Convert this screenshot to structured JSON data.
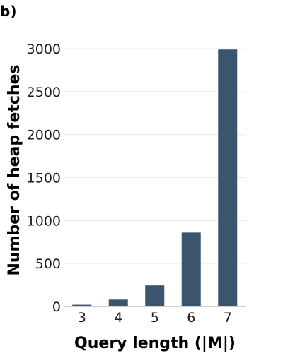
{
  "panel_label": "b)",
  "chart_data": {
    "type": "bar",
    "categories": [
      "3",
      "4",
      "5",
      "6",
      "7"
    ],
    "values": [
      20,
      80,
      245,
      860,
      2990
    ],
    "title": "",
    "xlabel": "Query length (|M|)",
    "ylabel": "Number of heap fetches",
    "ylim": [
      0,
      3000
    ],
    "yticks": [
      0,
      500,
      1000,
      1500,
      2000,
      2500,
      3000
    ],
    "grid": "horizontal",
    "bar_color": "#3b556f",
    "grid_color": "#ececec"
  }
}
